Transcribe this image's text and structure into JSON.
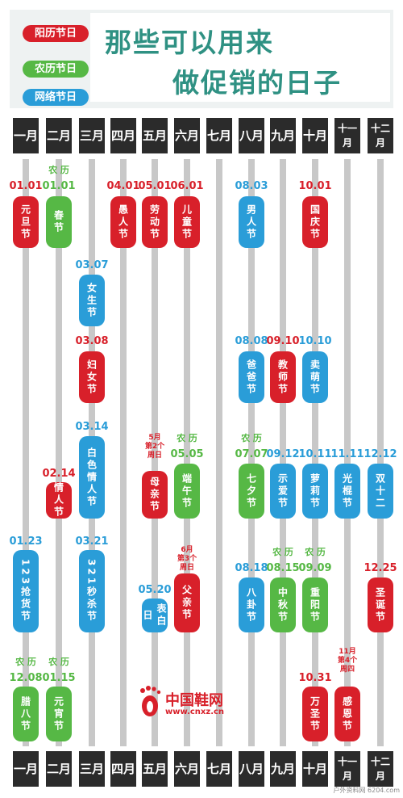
{
  "legend": {
    "solar": "阳历节日",
    "lunar": "农历节日",
    "online": "网络节日",
    "colors": {
      "solar": "#d8202a",
      "lunar": "#56b845",
      "online": "#2a9dd8"
    }
  },
  "title": {
    "line1": "那些可以用来",
    "line2": "做促销的日子"
  },
  "months": [
    "一月",
    "二月",
    "三月",
    "四月",
    "五月",
    "六月",
    "七月",
    "八月",
    "九月",
    "十月",
    "十一月",
    "十二月"
  ],
  "lunar_label": "农 历",
  "festivals": [
    {
      "id": "yuandan",
      "month": 1,
      "date": "01.01",
      "name": "元旦节",
      "type": "solar"
    },
    {
      "id": "chunjie",
      "month": 2,
      "date": "01.01",
      "name": "春节",
      "type": "lunar"
    },
    {
      "id": "yuren",
      "month": 4,
      "date": "04.01",
      "name": "愚人节",
      "type": "solar"
    },
    {
      "id": "laodong",
      "month": 5,
      "date": "05.01",
      "name": "劳动节",
      "type": "solar"
    },
    {
      "id": "ertong",
      "month": 6,
      "date": "06.01",
      "name": "儿童节",
      "type": "solar"
    },
    {
      "id": "nanren",
      "month": 8,
      "date": "08.03",
      "name": "男人节",
      "type": "online"
    },
    {
      "id": "guoqing",
      "month": 10,
      "date": "10.01",
      "name": "国庆节",
      "type": "solar"
    },
    {
      "id": "nvsheng",
      "month": 3,
      "date": "03.07",
      "name": "女生节",
      "type": "online"
    },
    {
      "id": "funv",
      "month": 3,
      "date": "03.08",
      "name": "妇女节",
      "type": "solar"
    },
    {
      "id": "baba",
      "month": 8,
      "date": "08.08",
      "name": "爸爸节",
      "type": "online"
    },
    {
      "id": "jiaoshi",
      "month": 9,
      "date": "09.10",
      "name": "教师节",
      "type": "solar"
    },
    {
      "id": "maimeng",
      "month": 10,
      "date": "10.10",
      "name": "卖萌节",
      "type": "online"
    },
    {
      "id": "baise",
      "month": 3,
      "date": "03.14",
      "name": "白色情人节",
      "type": "online"
    },
    {
      "id": "qingren",
      "month": 2,
      "date": "02.14",
      "name": "情人节",
      "type": "solar"
    },
    {
      "id": "muqin",
      "month": 5,
      "date": "",
      "note": "5月 第2个 周日",
      "name": "母亲节",
      "type": "solar"
    },
    {
      "id": "duanwu",
      "month": 6,
      "date": "05.05",
      "name": "端午节",
      "type": "lunar"
    },
    {
      "id": "qixi",
      "month": 8,
      "date": "07.07",
      "name": "七夕节",
      "type": "lunar"
    },
    {
      "id": "shiai",
      "month": 9,
      "date": "09.12",
      "name": "示爱节",
      "type": "online"
    },
    {
      "id": "luoli",
      "month": 10,
      "date": "10.11",
      "name": "萝莉节",
      "type": "online"
    },
    {
      "id": "guanggun",
      "month": 11,
      "date": "11.11",
      "name": "光棍节",
      "type": "online"
    },
    {
      "id": "shuang12",
      "month": 12,
      "date": "12.12",
      "name": "双十二",
      "type": "online"
    },
    {
      "id": "qianghuo",
      "month": 1,
      "date": "01.23",
      "name": "123抢货节",
      "type": "online"
    },
    {
      "id": "miaosha",
      "month": 3,
      "date": "03.21",
      "name": "321秒杀节",
      "type": "online"
    },
    {
      "id": "biaobai",
      "month": 5,
      "date": "05.20",
      "name": "表白日",
      "type": "online"
    },
    {
      "id": "fuqin",
      "month": 6,
      "date": "",
      "note": "6月 第3个 周日",
      "name": "父亲节",
      "type": "solar"
    },
    {
      "id": "bagua",
      "month": 8,
      "date": "08.18",
      "name": "八卦节",
      "type": "online"
    },
    {
      "id": "zhongqiu",
      "month": 9,
      "date": "08.15",
      "name": "中秋节",
      "type": "lunar"
    },
    {
      "id": "chongyang",
      "month": 10,
      "date": "09.09",
      "name": "重阳节",
      "type": "lunar"
    },
    {
      "id": "shengdan",
      "month": 12,
      "date": "12.25",
      "name": "圣诞节",
      "type": "solar"
    },
    {
      "id": "laba",
      "month": 1,
      "date": "12.08",
      "name": "腊八节",
      "type": "lunar"
    },
    {
      "id": "yuanxiao",
      "month": 2,
      "date": "01.15",
      "name": "元宵节",
      "type": "lunar"
    },
    {
      "id": "wansheng",
      "month": 10,
      "date": "10.31",
      "name": "万圣节",
      "type": "solar"
    },
    {
      "id": "ganen",
      "month": 11,
      "date": "",
      "note": "11月 第4个 周四",
      "name": "感恩节",
      "type": "solar"
    }
  ],
  "watermark": {
    "name": "中国鞋网",
    "url": "www.cnxz.cn"
  },
  "credit": "户外资料网 6204.com"
}
